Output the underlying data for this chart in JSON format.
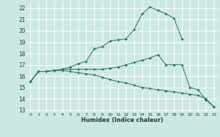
{
  "xlabel": "Humidex (Indice chaleur)",
  "bg_color": "#cce8e4",
  "grid_color": "#ffffff",
  "line_color": "#1a6b5e",
  "xlim": [
    -0.5,
    23.5
  ],
  "ylim": [
    12.8,
    22.6
  ],
  "yticks": [
    13,
    14,
    15,
    16,
    17,
    18,
    19,
    20,
    21,
    22
  ],
  "xticks": [
    0,
    1,
    2,
    3,
    4,
    5,
    6,
    7,
    8,
    9,
    10,
    11,
    12,
    13,
    14,
    15,
    16,
    17,
    18,
    19,
    20,
    21,
    22,
    23
  ],
  "curve1_x": [
    0,
    1,
    2,
    3,
    4,
    5,
    6,
    7,
    8,
    9,
    10,
    11,
    12,
    13,
    14,
    15,
    16,
    17,
    18,
    19
  ],
  "curve1_y": [
    15.5,
    16.4,
    16.4,
    16.5,
    16.6,
    16.8,
    17.1,
    17.3,
    18.4,
    18.6,
    19.1,
    19.2,
    19.3,
    20.1,
    21.5,
    22.1,
    21.8,
    21.5,
    21.1,
    19.3
  ],
  "curve2_x": [
    0,
    1,
    2,
    3,
    4,
    5,
    6,
    7,
    8,
    9,
    10,
    11,
    12,
    13,
    14,
    15,
    16,
    17,
    18,
    19,
    20,
    21,
    22,
    23
  ],
  "curve2_y": [
    15.5,
    16.4,
    16.4,
    16.5,
    16.6,
    16.6,
    16.6,
    16.6,
    16.6,
    16.6,
    16.7,
    16.8,
    17.0,
    17.2,
    17.4,
    17.6,
    17.9,
    17.0,
    17.0,
    17.0,
    15.0,
    14.8,
    13.9,
    13.3
  ],
  "curve3_x": [
    0,
    1,
    2,
    3,
    4,
    5,
    6,
    7,
    8,
    9,
    10,
    11,
    12,
    13,
    14,
    15,
    16,
    17,
    18,
    19,
    20,
    21,
    22,
    23
  ],
  "curve3_y": [
    15.5,
    16.4,
    16.4,
    16.5,
    16.5,
    16.4,
    16.3,
    16.2,
    16.1,
    15.9,
    15.7,
    15.5,
    15.4,
    15.2,
    15.0,
    14.9,
    14.8,
    14.7,
    14.6,
    14.5,
    14.4,
    14.3,
    14.0,
    13.3
  ]
}
